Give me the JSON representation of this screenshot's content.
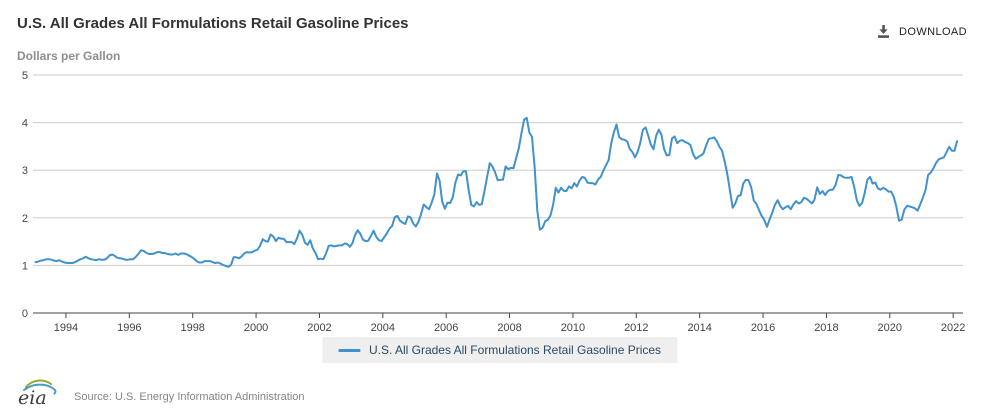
{
  "header": {
    "title": "U.S. All Grades All Formulations Retail Gasoline Prices",
    "units": "Dollars per Gallon",
    "download_label": "DOWNLOAD"
  },
  "legend": {
    "label": "U.S. All Grades All Formulations Retail Gasoline Prices"
  },
  "footer": {
    "logo_text": "eia",
    "source": "Source: U.S. Energy Information Administration"
  },
  "chart_data": {
    "type": "line",
    "title": "U.S. All Grades All Formulations Retail Gasoline Prices",
    "xlabel": "",
    "ylabel": "Dollars per Gallon",
    "ylim": [
      0,
      5
    ],
    "y_ticks": [
      0,
      1,
      2,
      3,
      4,
      5
    ],
    "x_ticks": [
      1994,
      1996,
      1998,
      2000,
      2002,
      2004,
      2006,
      2008,
      2010,
      2012,
      2014,
      2016,
      2018,
      2020,
      2022
    ],
    "x_range": [
      1992.96,
      2022.31
    ],
    "grid": "horizontal",
    "legend_position": "bottom",
    "theme": {
      "line_color": "#4191cd",
      "grid_color": "#cccccc",
      "axis_color": "#444444",
      "legend_bg": "#efefef",
      "legend_text_color": "#2b4a63"
    },
    "series": [
      {
        "name": "U.S. All Grades All Formulations Retail Gasoline Prices",
        "color": "#4191cd",
        "frequency": "monthly",
        "start_year": 1993,
        "start_month": 1,
        "values": [
          1.07,
          1.08,
          1.1,
          1.11,
          1.13,
          1.13,
          1.12,
          1.1,
          1.09,
          1.11,
          1.08,
          1.06,
          1.05,
          1.05,
          1.05,
          1.07,
          1.1,
          1.13,
          1.15,
          1.18,
          1.15,
          1.13,
          1.12,
          1.11,
          1.13,
          1.12,
          1.12,
          1.15,
          1.21,
          1.23,
          1.2,
          1.16,
          1.15,
          1.14,
          1.12,
          1.12,
          1.13,
          1.13,
          1.18,
          1.25,
          1.32,
          1.3,
          1.26,
          1.24,
          1.24,
          1.25,
          1.28,
          1.28,
          1.26,
          1.26,
          1.24,
          1.23,
          1.23,
          1.25,
          1.22,
          1.25,
          1.25,
          1.24,
          1.21,
          1.18,
          1.14,
          1.09,
          1.06,
          1.06,
          1.09,
          1.09,
          1.09,
          1.07,
          1.05,
          1.06,
          1.04,
          1.01,
          0.99,
          0.97,
          1.01,
          1.17,
          1.17,
          1.15,
          1.19,
          1.25,
          1.28,
          1.27,
          1.28,
          1.31,
          1.33,
          1.41,
          1.55,
          1.51,
          1.5,
          1.65,
          1.61,
          1.51,
          1.58,
          1.56,
          1.56,
          1.49,
          1.49,
          1.49,
          1.45,
          1.57,
          1.73,
          1.64,
          1.48,
          1.43,
          1.53,
          1.36,
          1.26,
          1.13,
          1.14,
          1.13,
          1.25,
          1.41,
          1.42,
          1.4,
          1.41,
          1.42,
          1.42,
          1.46,
          1.45,
          1.39,
          1.47,
          1.64,
          1.74,
          1.66,
          1.54,
          1.51,
          1.52,
          1.62,
          1.73,
          1.6,
          1.53,
          1.51,
          1.59,
          1.67,
          1.77,
          1.83,
          2.01,
          2.04,
          1.94,
          1.9,
          1.87,
          2.03,
          2.01,
          1.88,
          1.82,
          1.92,
          2.08,
          2.28,
          2.22,
          2.18,
          2.32,
          2.49,
          2.93,
          2.78,
          2.34,
          2.19,
          2.32,
          2.31,
          2.43,
          2.74,
          2.91,
          2.89,
          2.98,
          2.98,
          2.59,
          2.27,
          2.24,
          2.33,
          2.27,
          2.29,
          2.56,
          2.86,
          3.15,
          3.08,
          2.96,
          2.79,
          2.8,
          2.8,
          3.08,
          3.02,
          3.05,
          3.04,
          3.26,
          3.46,
          3.77,
          4.06,
          4.1,
          3.79,
          3.7,
          3.05,
          2.15,
          1.75,
          1.79,
          1.93,
          1.96,
          2.05,
          2.27,
          2.63,
          2.53,
          2.63,
          2.57,
          2.56,
          2.66,
          2.62,
          2.73,
          2.66,
          2.78,
          2.86,
          2.84,
          2.74,
          2.73,
          2.73,
          2.7,
          2.8,
          2.86,
          2.99,
          3.1,
          3.21,
          3.56,
          3.8,
          3.96,
          3.7,
          3.65,
          3.64,
          3.61,
          3.45,
          3.38,
          3.27,
          3.38,
          3.58,
          3.85,
          3.9,
          3.73,
          3.54,
          3.44,
          3.72,
          3.85,
          3.75,
          3.45,
          3.31,
          3.32,
          3.67,
          3.71,
          3.57,
          3.62,
          3.63,
          3.59,
          3.57,
          3.53,
          3.34,
          3.24,
          3.28,
          3.31,
          3.36,
          3.53,
          3.66,
          3.67,
          3.69,
          3.61,
          3.49,
          3.41,
          3.17,
          2.91,
          2.55,
          2.21,
          2.3,
          2.46,
          2.47,
          2.72,
          2.8,
          2.79,
          2.64,
          2.36,
          2.29,
          2.16,
          2.04,
          1.95,
          1.81,
          1.97,
          2.11,
          2.27,
          2.37,
          2.25,
          2.18,
          2.22,
          2.25,
          2.18,
          2.28,
          2.35,
          2.3,
          2.33,
          2.42,
          2.4,
          2.35,
          2.3,
          2.38,
          2.64,
          2.5,
          2.56,
          2.48,
          2.56,
          2.59,
          2.59,
          2.7,
          2.9,
          2.89,
          2.85,
          2.84,
          2.84,
          2.86,
          2.65,
          2.37,
          2.25,
          2.31,
          2.52,
          2.8,
          2.86,
          2.72,
          2.74,
          2.62,
          2.59,
          2.63,
          2.6,
          2.55,
          2.55,
          2.44,
          2.23,
          1.94,
          1.96,
          2.17,
          2.25,
          2.24,
          2.22,
          2.2,
          2.15,
          2.28,
          2.42,
          2.58,
          2.9,
          2.95,
          3.04,
          3.15,
          3.23,
          3.25,
          3.27,
          3.38,
          3.49,
          3.41,
          3.41,
          3.61
        ]
      }
    ]
  }
}
